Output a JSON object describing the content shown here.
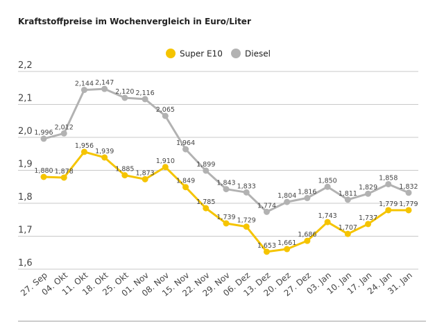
{
  "chart_data": {
    "type": "line",
    "title": "Kraftstoffpreise im Wochenvergleich in Euro/Liter",
    "xlabel": "",
    "ylabel": "",
    "categories": [
      "27. Sep",
      "04. Okt",
      "11. Okt",
      "18. Okt",
      "25. Okt",
      "01. Nov",
      "08. Nov",
      "15. Nov",
      "22. Nov",
      "29. Nov",
      "06. Dez",
      "13. Dez",
      "20. Dez",
      "27. Dez",
      "03. Jan",
      "10. Jan",
      "17. Jan",
      "24. Jan",
      "31. Jan"
    ],
    "ylim": [
      1.6,
      2.2
    ],
    "yticks": [
      "1,6",
      "1,7",
      "1,8",
      "1,9",
      "2,0",
      "2,1",
      "2,2"
    ],
    "grid": true,
    "legend_position": "top-center",
    "series": [
      {
        "name": "Super E10",
        "color": "#f5c400",
        "values": [
          1.88,
          1.878,
          1.956,
          1.939,
          1.885,
          1.873,
          1.91,
          1.849,
          1.785,
          1.739,
          1.729,
          1.653,
          1.661,
          1.686,
          1.743,
          1.707,
          1.737,
          1.779,
          1.779
        ]
      },
      {
        "name": "Diesel",
        "color": "#b2b2b2",
        "values": [
          1.996,
          2.012,
          2.144,
          2.147,
          2.12,
          2.116,
          2.065,
          1.964,
          1.899,
          1.843,
          1.833,
          1.774,
          1.804,
          1.816,
          1.85,
          1.811,
          1.829,
          1.858,
          1.832
        ]
      }
    ]
  }
}
